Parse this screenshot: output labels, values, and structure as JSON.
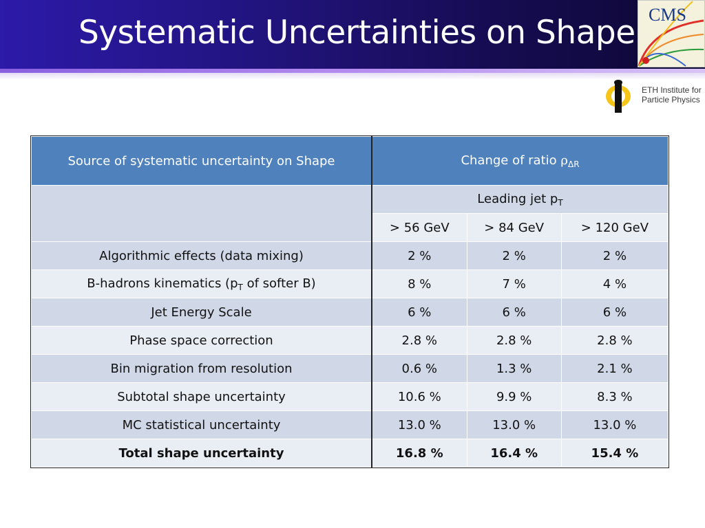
{
  "slide": {
    "title": "Systematic Uncertainties on Shape",
    "logos": {
      "cms_text": "CMS",
      "eth_line1": "ETH Institute for",
      "eth_line2": "Particle Physics"
    }
  },
  "table": {
    "header_source": "Source of systematic uncertainty on Shape",
    "header_change_prefix": "Change of ratio ",
    "header_change_rho": "ρ",
    "header_change_sub": "ΔR",
    "leading_jet_prefix": "Leading jet p",
    "leading_jet_sub": "T",
    "bins": [
      "> 56 GeV",
      "> 84 GeV",
      "> 120 GeV"
    ],
    "rows": [
      {
        "label": "Algorithmic effects (data mixing)",
        "values": [
          "2 %",
          "2 %",
          "2 %"
        ]
      },
      {
        "label_pre": "B-hadrons kinematics (p",
        "label_sub": "T",
        "label_post": " of softer B)",
        "values": [
          "8 %",
          "7 %",
          "4 %"
        ]
      },
      {
        "label": "Jet Energy Scale",
        "values": [
          "6 %",
          "6 %",
          "6 %"
        ]
      },
      {
        "label": "Phase space correction",
        "values": [
          "2.8 %",
          "2.8 %",
          "2.8 %"
        ]
      },
      {
        "label": "Bin migration from resolution",
        "values": [
          "0.6 %",
          "1.3 %",
          "2.1 %"
        ]
      },
      {
        "label": "Subtotal shape uncertainty",
        "values": [
          "10.6 %",
          "9.9 %",
          "8.3 %"
        ]
      },
      {
        "label": "MC statistical uncertainty",
        "values": [
          "13.0 %",
          "13.0 %",
          "13.0 %"
        ]
      },
      {
        "label": "Total shape uncertainty",
        "values": [
          "16.8 %",
          "16.4 %",
          "15.4 %"
        ]
      }
    ]
  },
  "colors": {
    "header_blue": "#4f81bd",
    "band_dark": "#d0d8e8",
    "band_light": "#e9edf4"
  }
}
